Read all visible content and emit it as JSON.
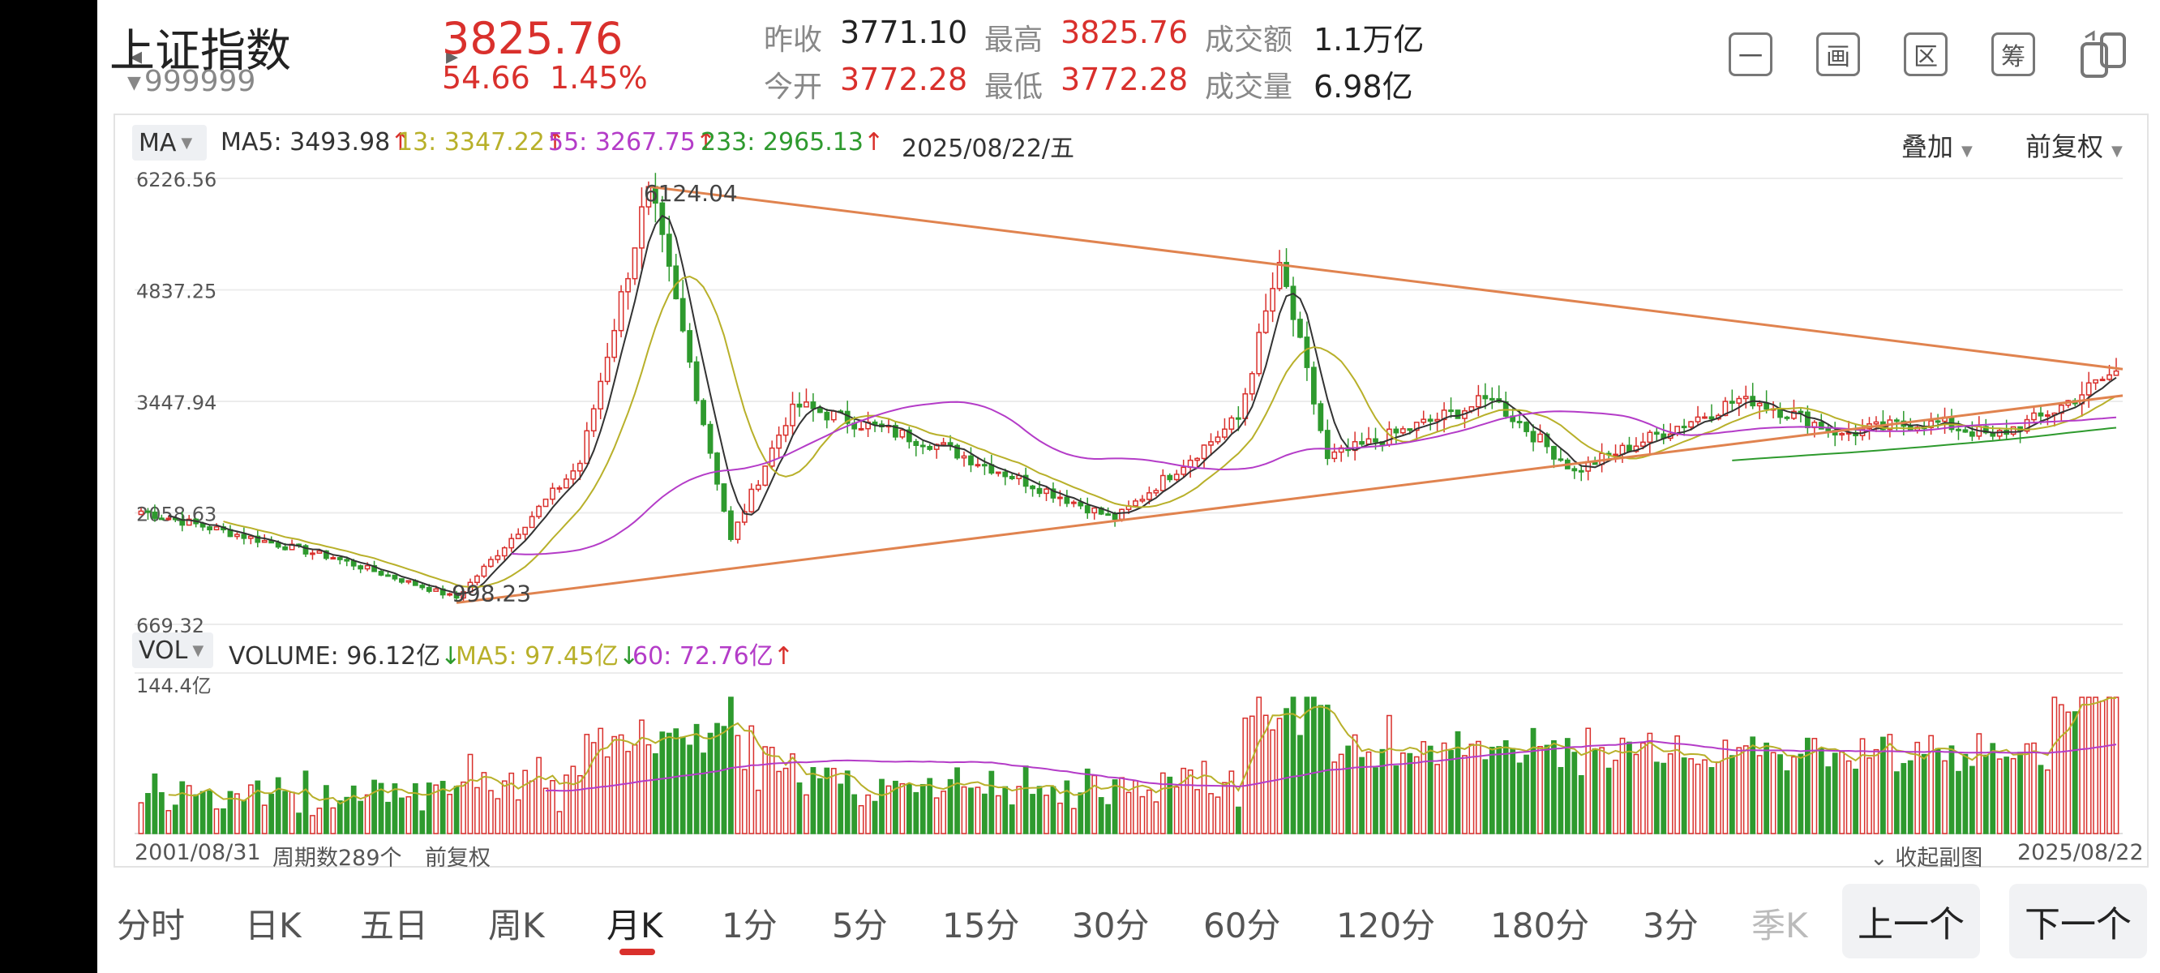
{
  "header": {
    "name": "上证指数",
    "code": "999999",
    "price": "3825.76",
    "change": "54.66",
    "change_pct": "1.45%",
    "stats": [
      {
        "label": "昨收",
        "value": "3771.10",
        "color": "normal"
      },
      {
        "label": "最高",
        "value": "3825.76",
        "color": "red"
      },
      {
        "label": "成交额",
        "value": "1.1万亿",
        "color": "normal"
      },
      {
        "label": "今开",
        "value": "3772.28",
        "color": "red"
      },
      {
        "label": "最低",
        "value": "3772.28",
        "color": "red"
      },
      {
        "label": "成交量",
        "value": "6.98亿",
        "color": "normal"
      }
    ],
    "tools": [
      "一",
      "画",
      "区",
      "筹"
    ]
  },
  "legend": {
    "ma_label": "MA",
    "ma5": "MA5: 3493.98",
    "ma13": "13: 3347.22",
    "ma55": "55: 3267.75",
    "ma233": "233: 2965.13",
    "date": "2025/08/22/五",
    "overlay": "叠加",
    "adjust": "前复权",
    "vol_label": "VOL",
    "volume": "VOLUME: 96.12亿",
    "vol_ma5": "MA5: 97.45亿",
    "vol_ma60": "60: 72.76亿",
    "up_arrow": "↑",
    "down_arrow": "↓"
  },
  "footer": {
    "start_date": "2001/08/31",
    "period_count": "周期数289个",
    "adjust": "前复权",
    "collapse": "收起副图",
    "collapse_icon": "⌄",
    "end_date": "2025/08/22"
  },
  "tabs": [
    "分时",
    "日K",
    "五日",
    "周K",
    "月K",
    "1分",
    "5分",
    "15分",
    "30分",
    "60分",
    "120分",
    "180分",
    "3分",
    "季K"
  ],
  "active_tab": "月K",
  "nav": {
    "prev": "上一个",
    "next": "下一个"
  },
  "colors": {
    "up": "#d9302c",
    "down": "#2e9a2e",
    "ma5": "#333333",
    "ma13": "#b8b02a",
    "ma55": "#b43cc8",
    "ma233": "#2e9a2e",
    "trendline": "#e0834f",
    "grid": "#ececec"
  },
  "chart_data": {
    "type": "candlestick",
    "title": "上证指数 月K",
    "y_axis_ticks": [
      "6226.56",
      "4837.25",
      "3447.94",
      "2058.63",
      "669.32"
    ],
    "ylim": [
      669.32,
      6226.56
    ],
    "annotations": {
      "high": "6124.04",
      "low": "998.23"
    },
    "x_range": [
      "2001/08/31",
      "2025/08/22"
    ],
    "volume_max_label": "144.4亿",
    "periods": 289,
    "latest": {
      "date": "2025/08/22",
      "close": 3825.76,
      "open": 3772.28,
      "high": 3825.76,
      "low": 3772.28
    },
    "key_points": [
      {
        "date": "2001/08",
        "close": 2080
      },
      {
        "date": "2003/12",
        "close": 1500
      },
      {
        "date": "2005/06",
        "close": 998.23
      },
      {
        "date": "2006/12",
        "close": 2675
      },
      {
        "date": "2007/10",
        "close": 6124.04
      },
      {
        "date": "2008/10",
        "close": 1728
      },
      {
        "date": "2009/07",
        "close": 3412
      },
      {
        "date": "2011/04",
        "close": 2911
      },
      {
        "date": "2013/06",
        "close": 1979
      },
      {
        "date": "2014/12",
        "close": 3234
      },
      {
        "date": "2015/06",
        "close": 5178
      },
      {
        "date": "2016/01",
        "close": 2737
      },
      {
        "date": "2018/01",
        "close": 3480
      },
      {
        "date": "2019/01",
        "close": 2584
      },
      {
        "date": "2021/02",
        "close": 3509
      },
      {
        "date": "2022/04",
        "close": 3047
      },
      {
        "date": "2023/05",
        "close": 3204
      },
      {
        "date": "2024/02",
        "close": 3015
      },
      {
        "date": "2024/10",
        "close": 3279
      },
      {
        "date": "2025/08",
        "close": 3825.76
      }
    ]
  }
}
